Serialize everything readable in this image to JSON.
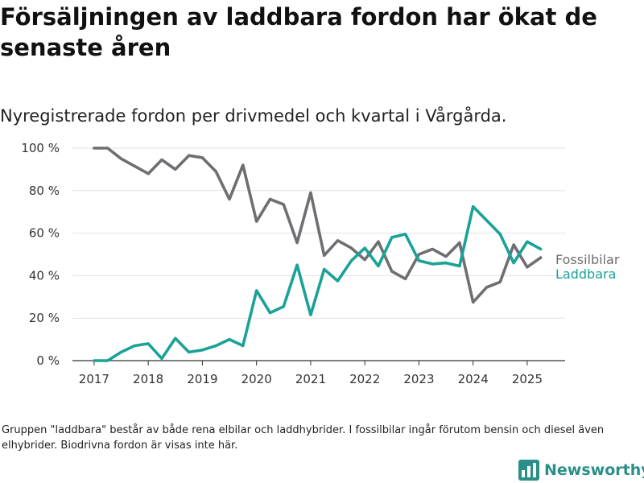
{
  "title": "Försäljningen av laddbara fordon har ökat de senaste åren",
  "subtitle": "Nyregistrerade fordon per drivmedel och kvartal i Vårgårda.",
  "footnote": "Gruppen \"laddbara\" består av både rena elbilar och laddhybrider. I fossilbilar ingår förutom bensin och diesel även elhybrider. Biodrivna fordon är visas inte här.",
  "logo": {
    "text": "Newsworthy",
    "icon": "newsworthy-logo-icon",
    "color": "#2a8f88"
  },
  "chart_data": {
    "type": "line",
    "title": "",
    "xlabel": "",
    "ylabel": "",
    "ylim": [
      0,
      100
    ],
    "xlim": [
      2016.6,
      2025.7
    ],
    "y_ticks": [
      {
        "value": 0,
        "label": "0 %"
      },
      {
        "value": 20,
        "label": "20 %"
      },
      {
        "value": 40,
        "label": "40 %"
      },
      {
        "value": 60,
        "label": "60 %"
      },
      {
        "value": 80,
        "label": "80 %"
      },
      {
        "value": 100,
        "label": "100 %"
      }
    ],
    "x_ticks": [
      {
        "value": 2017,
        "label": "2017"
      },
      {
        "value": 2018,
        "label": "2018"
      },
      {
        "value": 2019,
        "label": "2019"
      },
      {
        "value": 2020,
        "label": "2020"
      },
      {
        "value": 2021,
        "label": "2021"
      },
      {
        "value": 2022,
        "label": "2022"
      },
      {
        "value": 2023,
        "label": "2023"
      },
      {
        "value": 2024,
        "label": "2024"
      },
      {
        "value": 2025,
        "label": "2025"
      }
    ],
    "grid": "horizontal",
    "legend": "end-of-line labels, right",
    "x": [
      2017.0,
      2017.25,
      2017.5,
      2017.75,
      2018.0,
      2018.25,
      2018.5,
      2018.75,
      2019.0,
      2019.25,
      2019.5,
      2019.75,
      2020.0,
      2020.25,
      2020.5,
      2020.75,
      2021.0,
      2021.25,
      2021.5,
      2021.75,
      2022.0,
      2022.25,
      2022.5,
      2022.75,
      2023.0,
      2023.25,
      2023.5,
      2023.75,
      2024.0,
      2024.25,
      2024.5,
      2024.75,
      2025.0,
      2025.25
    ],
    "series": [
      {
        "name": "Fossilbilar",
        "color": "#6e6e73",
        "values": [
          100,
          100,
          95,
          91.5,
          88,
          94.5,
          90,
          96.5,
          95.5,
          89,
          76,
          92,
          65.5,
          76,
          73.5,
          55.5,
          79,
          49.5,
          56.5,
          53,
          47.5,
          56,
          42,
          38.5,
          50,
          52.5,
          49,
          55.5,
          27.5,
          34.5,
          37,
          54.5,
          44,
          48.5
        ]
      },
      {
        "name": "Laddbara",
        "color": "#1aa297",
        "values": [
          0,
          0,
          4,
          7,
          8,
          1,
          10.5,
          4,
          5,
          7,
          10,
          7,
          33,
          22.5,
          25.5,
          45,
          21.5,
          43,
          37.5,
          47,
          53,
          44.5,
          58,
          59.5,
          47,
          45.5,
          46,
          44.5,
          72.5,
          66,
          59.5,
          46,
          56,
          52.5
        ]
      }
    ]
  }
}
